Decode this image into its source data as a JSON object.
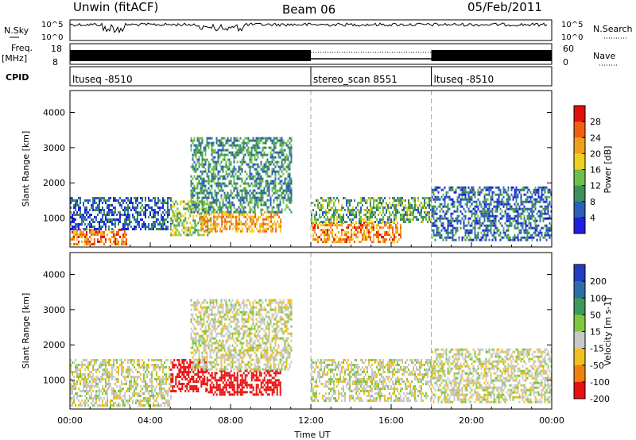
{
  "header": {
    "station": "Unwin (fitACF)",
    "beam": "Beam 06",
    "date": "05/Feb/2011"
  },
  "top_panels": {
    "nsky_label": "N.Sky",
    "nsky_ticks": [
      "10^5",
      "10^0"
    ],
    "nsearch_label": "N.Search",
    "nsearch_ticks": [
      "10^5",
      "10^0"
    ],
    "freq_label": "Freq.",
    "freq_unit": "[MHz]",
    "freq_ticks": [
      "18",
      "8"
    ],
    "nave_label": "Nave",
    "nave_ticks": [
      "60",
      "0"
    ],
    "cpid_label": "CPID",
    "cpid_segments": [
      {
        "label": "ltuseq -8510",
        "start_h": 0,
        "end_h": 12
      },
      {
        "label": "stereo_scan 8551",
        "start_h": 12,
        "end_h": 18
      },
      {
        "label": "ltuseq -8510",
        "start_h": 18,
        "end_h": 24
      }
    ]
  },
  "chart_data": [
    {
      "type": "heatmap",
      "name": "power",
      "xlabel": "",
      "ylabel": "Slant Range [km]",
      "xlim": [
        0,
        24
      ],
      "ylim": [
        180,
        4620
      ],
      "yticks": [
        1000,
        2000,
        3000,
        4000
      ],
      "colorbar": {
        "label": "Power [dB]",
        "ticks": [
          "4",
          "8",
          "12",
          "16",
          "20",
          "24",
          "28"
        ],
        "colors": [
          "#1f1fe0",
          "#2a5fb8",
          "#3f8f5a",
          "#6fbf4a",
          "#f0d020",
          "#f0a020",
          "#f06010",
          "#e01010"
        ]
      },
      "regions": [
        {
          "start_h": 0.0,
          "end_h": 2.8,
          "range_km": [
            250,
            700
          ],
          "level_db": 26
        },
        {
          "start_h": 0.0,
          "end_h": 5.0,
          "range_km": [
            700,
            1600
          ],
          "level_db": 8
        },
        {
          "start_h": 5.0,
          "end_h": 7.0,
          "range_km": [
            500,
            1500
          ],
          "level_db": 16
        },
        {
          "start_h": 6.5,
          "end_h": 10.5,
          "range_km": [
            600,
            1200
          ],
          "level_db": 24
        },
        {
          "start_h": 6.0,
          "end_h": 11.0,
          "range_km": [
            1200,
            3300
          ],
          "level_db": 12
        },
        {
          "start_h": 12.0,
          "end_h": 16.5,
          "range_km": [
            350,
            900
          ],
          "level_db": 26
        },
        {
          "start_h": 12.0,
          "end_h": 18.0,
          "range_km": [
            900,
            1600
          ],
          "level_db": 14
        },
        {
          "start_h": 18.0,
          "end_h": 24.0,
          "range_km": [
            400,
            1900
          ],
          "level_db": 9
        }
      ]
    },
    {
      "type": "heatmap",
      "name": "velocity",
      "xlabel": "Time UT",
      "ylabel": "Slant Range [km]",
      "xlim": [
        0,
        24
      ],
      "ylim": [
        180,
        4620
      ],
      "xticks": [
        "00:00",
        "04:00",
        "08:00",
        "12:00",
        "16:00",
        "20:00",
        "00:00"
      ],
      "yticks": [
        1000,
        2000,
        3000,
        4000
      ],
      "colorbar": {
        "label": "Velocity [m s-1]",
        "ticks": [
          "200",
          "100",
          "50",
          "15",
          "-15",
          "-50",
          "-100",
          "-200"
        ],
        "colors": [
          "#1f3fc0",
          "#2e6ea8",
          "#3c9a5c",
          "#7ec840",
          "#c8c8c8",
          "#f0c020",
          "#f08010",
          "#e81010"
        ]
      },
      "regions": [
        {
          "start_h": 0.0,
          "end_h": 5.0,
          "range_km": [
            250,
            1600
          ],
          "velocity": 0
        },
        {
          "start_h": 5.0,
          "end_h": 6.8,
          "range_km": [
            700,
            1600
          ],
          "velocity": -200
        },
        {
          "start_h": 6.8,
          "end_h": 10.5,
          "range_km": [
            600,
            1300
          ],
          "velocity": -250
        },
        {
          "start_h": 6.0,
          "end_h": 11.0,
          "range_km": [
            1300,
            3300
          ],
          "velocity": 0
        },
        {
          "start_h": 12.0,
          "end_h": 18.0,
          "range_km": [
            400,
            1600
          ],
          "velocity": 0
        },
        {
          "start_h": 18.0,
          "end_h": 24.0,
          "range_km": [
            400,
            1900
          ],
          "velocity": 0
        }
      ]
    }
  ]
}
